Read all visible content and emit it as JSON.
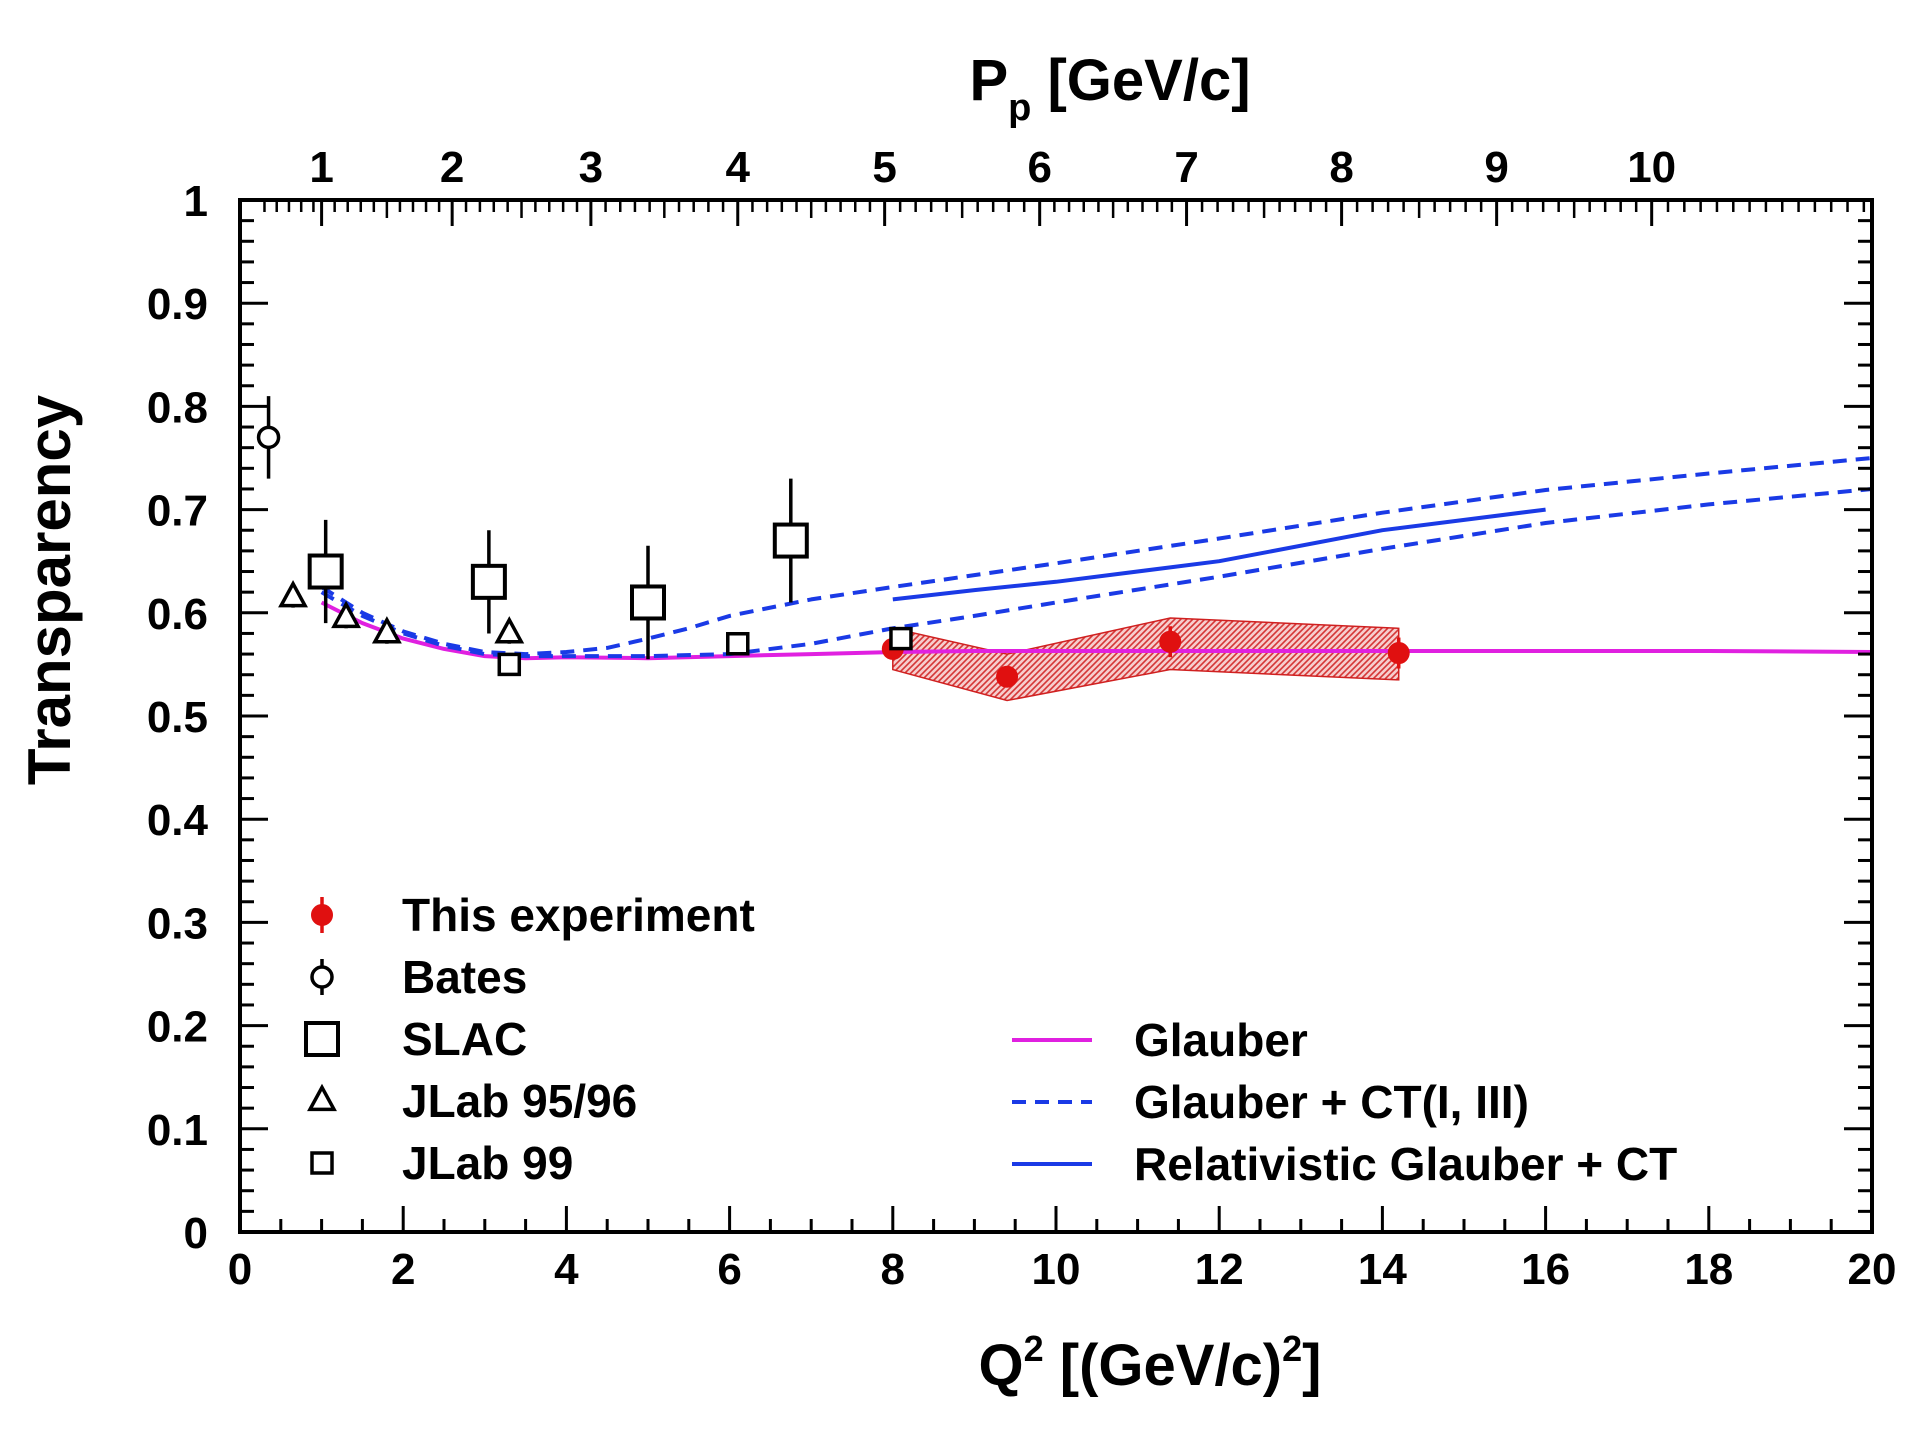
{
  "chart_data": {
    "type": "scatter",
    "xlabel": {
      "base": "Q",
      "sup": "2",
      "rest": " [(GeV/c)",
      "sup2": "2",
      "close": "]"
    },
    "ylabel": "Transparency",
    "toplabel": {
      "base": "P",
      "sub": "p",
      "rest": " [GeV/c]"
    },
    "xlim": [
      0,
      20
    ],
    "ylim": [
      0,
      1
    ],
    "xticks": [
      0,
      2,
      4,
      6,
      8,
      10,
      12,
      14,
      16,
      18,
      20
    ],
    "yticks": [
      0,
      0.1,
      0.2,
      0.3,
      0.4,
      0.5,
      0.6,
      0.7,
      0.8,
      0.9,
      1
    ],
    "top_axis": {
      "unit": "GeV/c",
      "ticks": [
        {
          "label": "1",
          "q2": 1.0
        },
        {
          "label": "2",
          "q2": 2.6
        },
        {
          "label": "3",
          "q2": 4.3
        },
        {
          "label": "4",
          "q2": 6.1
        },
        {
          "label": "5",
          "q2": 7.9
        },
        {
          "label": "6",
          "q2": 9.8
        },
        {
          "label": "7",
          "q2": 11.6
        },
        {
          "label": "8",
          "q2": 13.5
        },
        {
          "label": "9",
          "q2": 15.4
        },
        {
          "label": "10",
          "q2": 17.3
        }
      ]
    },
    "series": [
      {
        "name": "This experiment",
        "marker": "filled-circle",
        "color": "#e01010",
        "points": [
          [
            8.0,
            0.565,
            0.01
          ],
          [
            9.4,
            0.538,
            0.01
          ],
          [
            11.4,
            0.572,
            0.015
          ],
          [
            14.2,
            0.561,
            0.015
          ]
        ],
        "band": {
          "x": [
            8.0,
            9.4,
            11.4,
            14.2
          ],
          "low": [
            0.545,
            0.515,
            0.545,
            0.535
          ],
          "high": [
            0.585,
            0.56,
            0.595,
            0.585
          ]
        }
      },
      {
        "name": "Bates",
        "marker": "open-circle",
        "color": "#000000",
        "points": [
          [
            0.35,
            0.77,
            0.04
          ]
        ]
      },
      {
        "name": "SLAC",
        "marker": "open-square-large",
        "color": "#000000",
        "points": [
          [
            1.05,
            0.64,
            0.05
          ],
          [
            3.05,
            0.63,
            0.05
          ],
          [
            5.0,
            0.61,
            0.055
          ],
          [
            6.75,
            0.67,
            0.06
          ]
        ]
      },
      {
        "name": "JLab 95/96",
        "marker": "open-triangle",
        "color": "#000000",
        "points": [
          [
            0.65,
            0.615,
            0.01
          ],
          [
            1.3,
            0.595,
            0.01
          ],
          [
            1.8,
            0.58,
            0.01
          ],
          [
            3.3,
            0.58,
            0.01
          ]
        ]
      },
      {
        "name": "JLab 99",
        "marker": "open-square-small",
        "color": "#000000",
        "points": [
          [
            3.3,
            0.55,
            0.01
          ],
          [
            6.1,
            0.57,
            0.01
          ],
          [
            8.1,
            0.575,
            0.01
          ]
        ]
      }
    ],
    "curves": [
      {
        "name": "Glauber",
        "style": "solid",
        "color": "#e020e0",
        "points": [
          [
            1.0,
            0.61
          ],
          [
            1.5,
            0.59
          ],
          [
            2,
            0.575
          ],
          [
            2.5,
            0.565
          ],
          [
            3,
            0.558
          ],
          [
            3.5,
            0.556
          ],
          [
            4,
            0.557
          ],
          [
            5,
            0.556
          ],
          [
            6,
            0.558
          ],
          [
            7,
            0.56
          ],
          [
            8,
            0.562
          ],
          [
            9,
            0.563
          ],
          [
            10,
            0.563
          ],
          [
            12,
            0.563
          ],
          [
            14,
            0.563
          ],
          [
            16,
            0.563
          ],
          [
            18,
            0.563
          ],
          [
            20,
            0.562
          ]
        ]
      },
      {
        "name": "Glauber + CT(I, III)",
        "style": "dashed",
        "color": "#1a3ae6",
        "points": [
          [
            1.0,
            0.625
          ],
          [
            1.5,
            0.6
          ],
          [
            2,
            0.582
          ],
          [
            2.5,
            0.57
          ],
          [
            3,
            0.562
          ],
          [
            3.5,
            0.56
          ],
          [
            4,
            0.562
          ],
          [
            4.5,
            0.566
          ],
          [
            5,
            0.575
          ],
          [
            5.5,
            0.585
          ],
          [
            6,
            0.597
          ],
          [
            7,
            0.613
          ],
          [
            8,
            0.625
          ],
          [
            10,
            0.648
          ],
          [
            12,
            0.672
          ],
          [
            14,
            0.697
          ],
          [
            16,
            0.719
          ],
          [
            18,
            0.735
          ],
          [
            20,
            0.75
          ]
        ]
      },
      {
        "name": "Glauber + CT(I, III)",
        "style": "dashed",
        "color": "#1a3ae6",
        "legend": false,
        "points": [
          [
            1.0,
            0.62
          ],
          [
            1.5,
            0.597
          ],
          [
            2,
            0.58
          ],
          [
            2.5,
            0.568
          ],
          [
            3,
            0.56
          ],
          [
            3.5,
            0.558
          ],
          [
            4,
            0.558
          ],
          [
            5,
            0.558
          ],
          [
            6,
            0.56
          ],
          [
            7,
            0.57
          ],
          [
            8,
            0.585
          ],
          [
            9,
            0.597
          ],
          [
            10,
            0.61
          ],
          [
            12,
            0.635
          ],
          [
            14,
            0.662
          ],
          [
            16,
            0.687
          ],
          [
            18,
            0.705
          ],
          [
            20,
            0.72
          ]
        ]
      },
      {
        "name": "Relativistic Glauber + CT",
        "style": "solid",
        "color": "#1a3ae6",
        "points": [
          [
            8.0,
            0.613
          ],
          [
            9,
            0.622
          ],
          [
            10,
            0.63
          ],
          [
            12,
            0.65
          ],
          [
            14,
            0.68
          ],
          [
            16,
            0.7
          ]
        ]
      }
    ],
    "legend_left": [
      "This experiment",
      "Bates",
      "SLAC",
      "JLab 95/96",
      "JLab 99"
    ],
    "legend_right": [
      "Glauber",
      "Glauber + CT(I, III)",
      "Relativistic Glauber + CT"
    ]
  }
}
